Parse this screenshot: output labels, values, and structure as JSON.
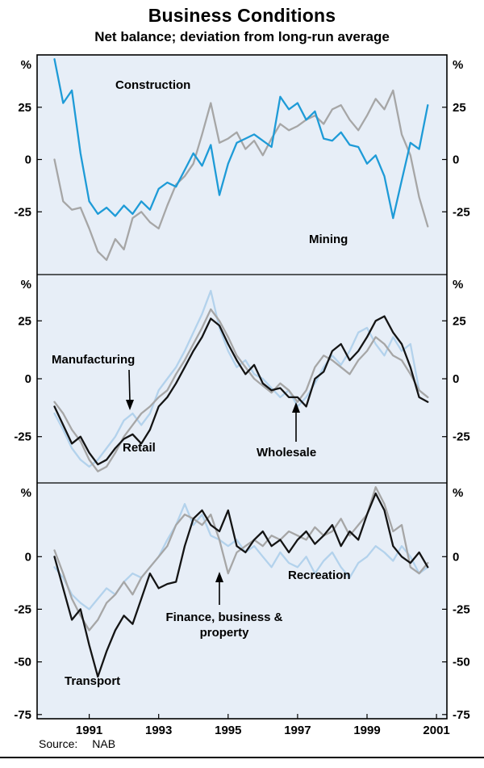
{
  "chart_data": {
    "type": "line",
    "title": "Business Conditions",
    "subtitle": "Net balance; deviation from long-run average",
    "source": {
      "label": "Source:",
      "value": "NAB"
    },
    "unit": "%",
    "x_start": 1990.0,
    "x_step": 0.25,
    "xlim": [
      1989.5,
      2001.3
    ],
    "x_ticks": [
      1991,
      1993,
      1995,
      1997,
      1999,
      2001
    ],
    "panel_bg": "#e7eef7",
    "line_colors": {
      "blue": "#1e9bd7",
      "gray": "#a6a6a6",
      "black": "#141414",
      "pale_blue": "#b3d2ec"
    },
    "panels": [
      {
        "ylim": [
          -55,
          50
        ],
        "yticks": [
          25,
          0,
          -25
        ],
        "series": [
          {
            "name": "Mining",
            "color": "#a6a6a6",
            "values": [
              0,
              -20,
              -24,
              -23,
              -33,
              -44,
              -48,
              -38,
              -43,
              -28,
              -25,
              -30,
              -33,
              -22,
              -12,
              -8,
              -2,
              12,
              27,
              8,
              10,
              13,
              5,
              9,
              2,
              10,
              17,
              14,
              16,
              19,
              21,
              17,
              24,
              26,
              19,
              14,
              21,
              29,
              24,
              33,
              12,
              2,
              -18,
              -32
            ]
          },
          {
            "name": "Construction",
            "color": "#1e9bd7",
            "values": [
              48,
              27,
              33,
              3,
              -20,
              -26,
              -23,
              -27,
              -22,
              -26,
              -20,
              -24,
              -14,
              -11,
              -13,
              -5,
              3,
              -3,
              7,
              -17,
              -2,
              8,
              10,
              12,
              9,
              6,
              30,
              24,
              27,
              19,
              23,
              10,
              9,
              13,
              7,
              6,
              -2,
              2,
              -8,
              -28,
              -10,
              8,
              5,
              26
            ]
          }
        ]
      },
      {
        "ylim": [
          -45,
          45
        ],
        "yticks": [
          25,
          0,
          -25
        ],
        "series": [
          {
            "name": "Wholesale",
            "color": "#b3d2ec",
            "values": [
              -15,
              -22,
              -30,
              -35,
              -38,
              -35,
              -30,
              -25,
              -18,
              -15,
              -20,
              -15,
              -5,
              0,
              5,
              12,
              20,
              28,
              38,
              22,
              12,
              5,
              8,
              2,
              0,
              -4,
              -8,
              -5,
              -12,
              -8,
              -2,
              5,
              10,
              6,
              12,
              20,
              22,
              15,
              10,
              18,
              12,
              15,
              -5,
              -8
            ]
          },
          {
            "name": "Manufacturing",
            "color": "#a6a6a6",
            "values": [
              -10,
              -15,
              -22,
              -27,
              -35,
              -40,
              -38,
              -32,
              -25,
              -20,
              -15,
              -12,
              -8,
              -5,
              2,
              8,
              15,
              22,
              30,
              25,
              18,
              10,
              5,
              0,
              -3,
              -6,
              -2,
              -5,
              -10,
              -5,
              5,
              10,
              8,
              5,
              2,
              8,
              12,
              18,
              15,
              10,
              8,
              2,
              -5,
              -8
            ]
          },
          {
            "name": "Retail",
            "color": "#141414",
            "values": [
              -12,
              -20,
              -28,
              -25,
              -32,
              -37,
              -35,
              -30,
              -26,
              -24,
              -28,
              -22,
              -12,
              -8,
              -2,
              5,
              12,
              18,
              26,
              23,
              15,
              8,
              2,
              6,
              -2,
              -5,
              -4,
              -8,
              -8,
              -12,
              0,
              3,
              12,
              15,
              8,
              12,
              18,
              25,
              27,
              20,
              15,
              5,
              -8,
              -10
            ]
          }
        ]
      },
      {
        "ylim": [
          -77,
          35
        ],
        "yticks": [
          0,
          -25,
          -50,
          -75
        ],
        "series": [
          {
            "name": "Recreation",
            "color": "#b3d2ec",
            "values": [
              -5,
              -10,
              -18,
              -22,
              -25,
              -20,
              -15,
              -18,
              -12,
              -8,
              -10,
              -5,
              0,
              8,
              15,
              25,
              15,
              20,
              10,
              8,
              5,
              8,
              2,
              5,
              0,
              -5,
              2,
              -3,
              -5,
              0,
              -8,
              -2,
              2,
              -5,
              -10,
              -3,
              0,
              5,
              2,
              -2,
              5,
              0,
              -8,
              -5
            ]
          },
          {
            "name": "Finance, business & property",
            "color": "#a6a6a6",
            "values": [
              3,
              -8,
              -20,
              -28,
              -35,
              -30,
              -22,
              -18,
              -12,
              -18,
              -10,
              -5,
              0,
              5,
              15,
              20,
              18,
              15,
              20,
              8,
              -8,
              2,
              5,
              8,
              5,
              10,
              8,
              12,
              10,
              8,
              14,
              10,
              12,
              18,
              10,
              15,
              20,
              33,
              25,
              12,
              15,
              -5,
              -8,
              -3
            ]
          },
          {
            "name": "Transport",
            "color": "#141414",
            "values": [
              0,
              -15,
              -30,
              -25,
              -42,
              -57,
              -45,
              -35,
              -28,
              -32,
              -20,
              -8,
              -15,
              -13,
              -12,
              5,
              18,
              22,
              15,
              12,
              22,
              5,
              2,
              8,
              12,
              5,
              8,
              2,
              8,
              12,
              6,
              10,
              15,
              5,
              12,
              8,
              20,
              30,
              22,
              5,
              0,
              -3,
              2,
              -5
            ]
          }
        ]
      }
    ]
  }
}
